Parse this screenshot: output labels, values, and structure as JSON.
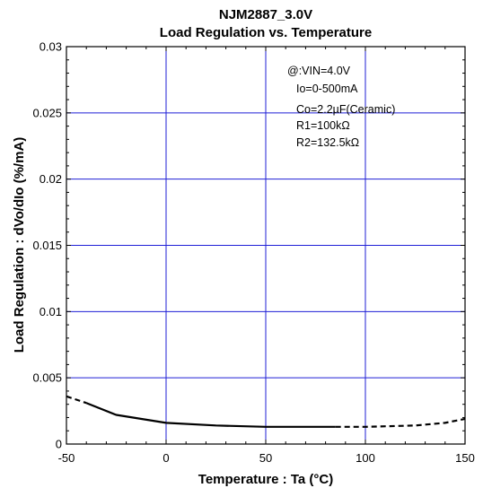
{
  "chart_data": {
    "type": "line",
    "title": "NJM2887_3.0V",
    "subtitle": "Load Regulation vs. Temperature",
    "xlabel": "Temperature : Ta (°C)",
    "ylabel": "Load Regulation : dVo/dIo (%/mA)",
    "xlim": [
      -50,
      150
    ],
    "ylim": [
      0,
      0.03
    ],
    "xticks": [
      -50,
      0,
      50,
      100,
      150
    ],
    "xtick_labels": [
      "-50",
      "0",
      "50",
      "100",
      "150"
    ],
    "yticks": [
      0,
      0.005,
      0.01,
      0.015,
      0.02,
      0.025,
      0.03
    ],
    "ytick_labels": [
      "0",
      "0.005",
      "0.01",
      "0.015",
      "0.02",
      "0.025",
      "0.03"
    ],
    "grid": true,
    "annotations": [
      "@:VIN=4.0V",
      "Io=0-500mA",
      "Co=2.2µF(Ceramic)",
      "R1=100kΩ",
      "R2=132.5kΩ"
    ],
    "series": [
      {
        "style": "solid",
        "x": [
          -40,
          -25,
          0,
          25,
          50,
          85
        ],
        "y": [
          0.0031,
          0.0022,
          0.0016,
          0.0014,
          0.0013,
          0.0013
        ]
      },
      {
        "style": "dashed",
        "x": [
          -50,
          -40
        ],
        "y": [
          0.0036,
          0.0031
        ]
      },
      {
        "style": "dashed",
        "x": [
          85,
          100,
          125,
          140,
          150
        ],
        "y": [
          0.0013,
          0.0013,
          0.0014,
          0.0016,
          0.0019
        ]
      }
    ]
  },
  "colors": {
    "grid": "#1f1fd6",
    "frame": "#000000",
    "line": "#000000"
  }
}
